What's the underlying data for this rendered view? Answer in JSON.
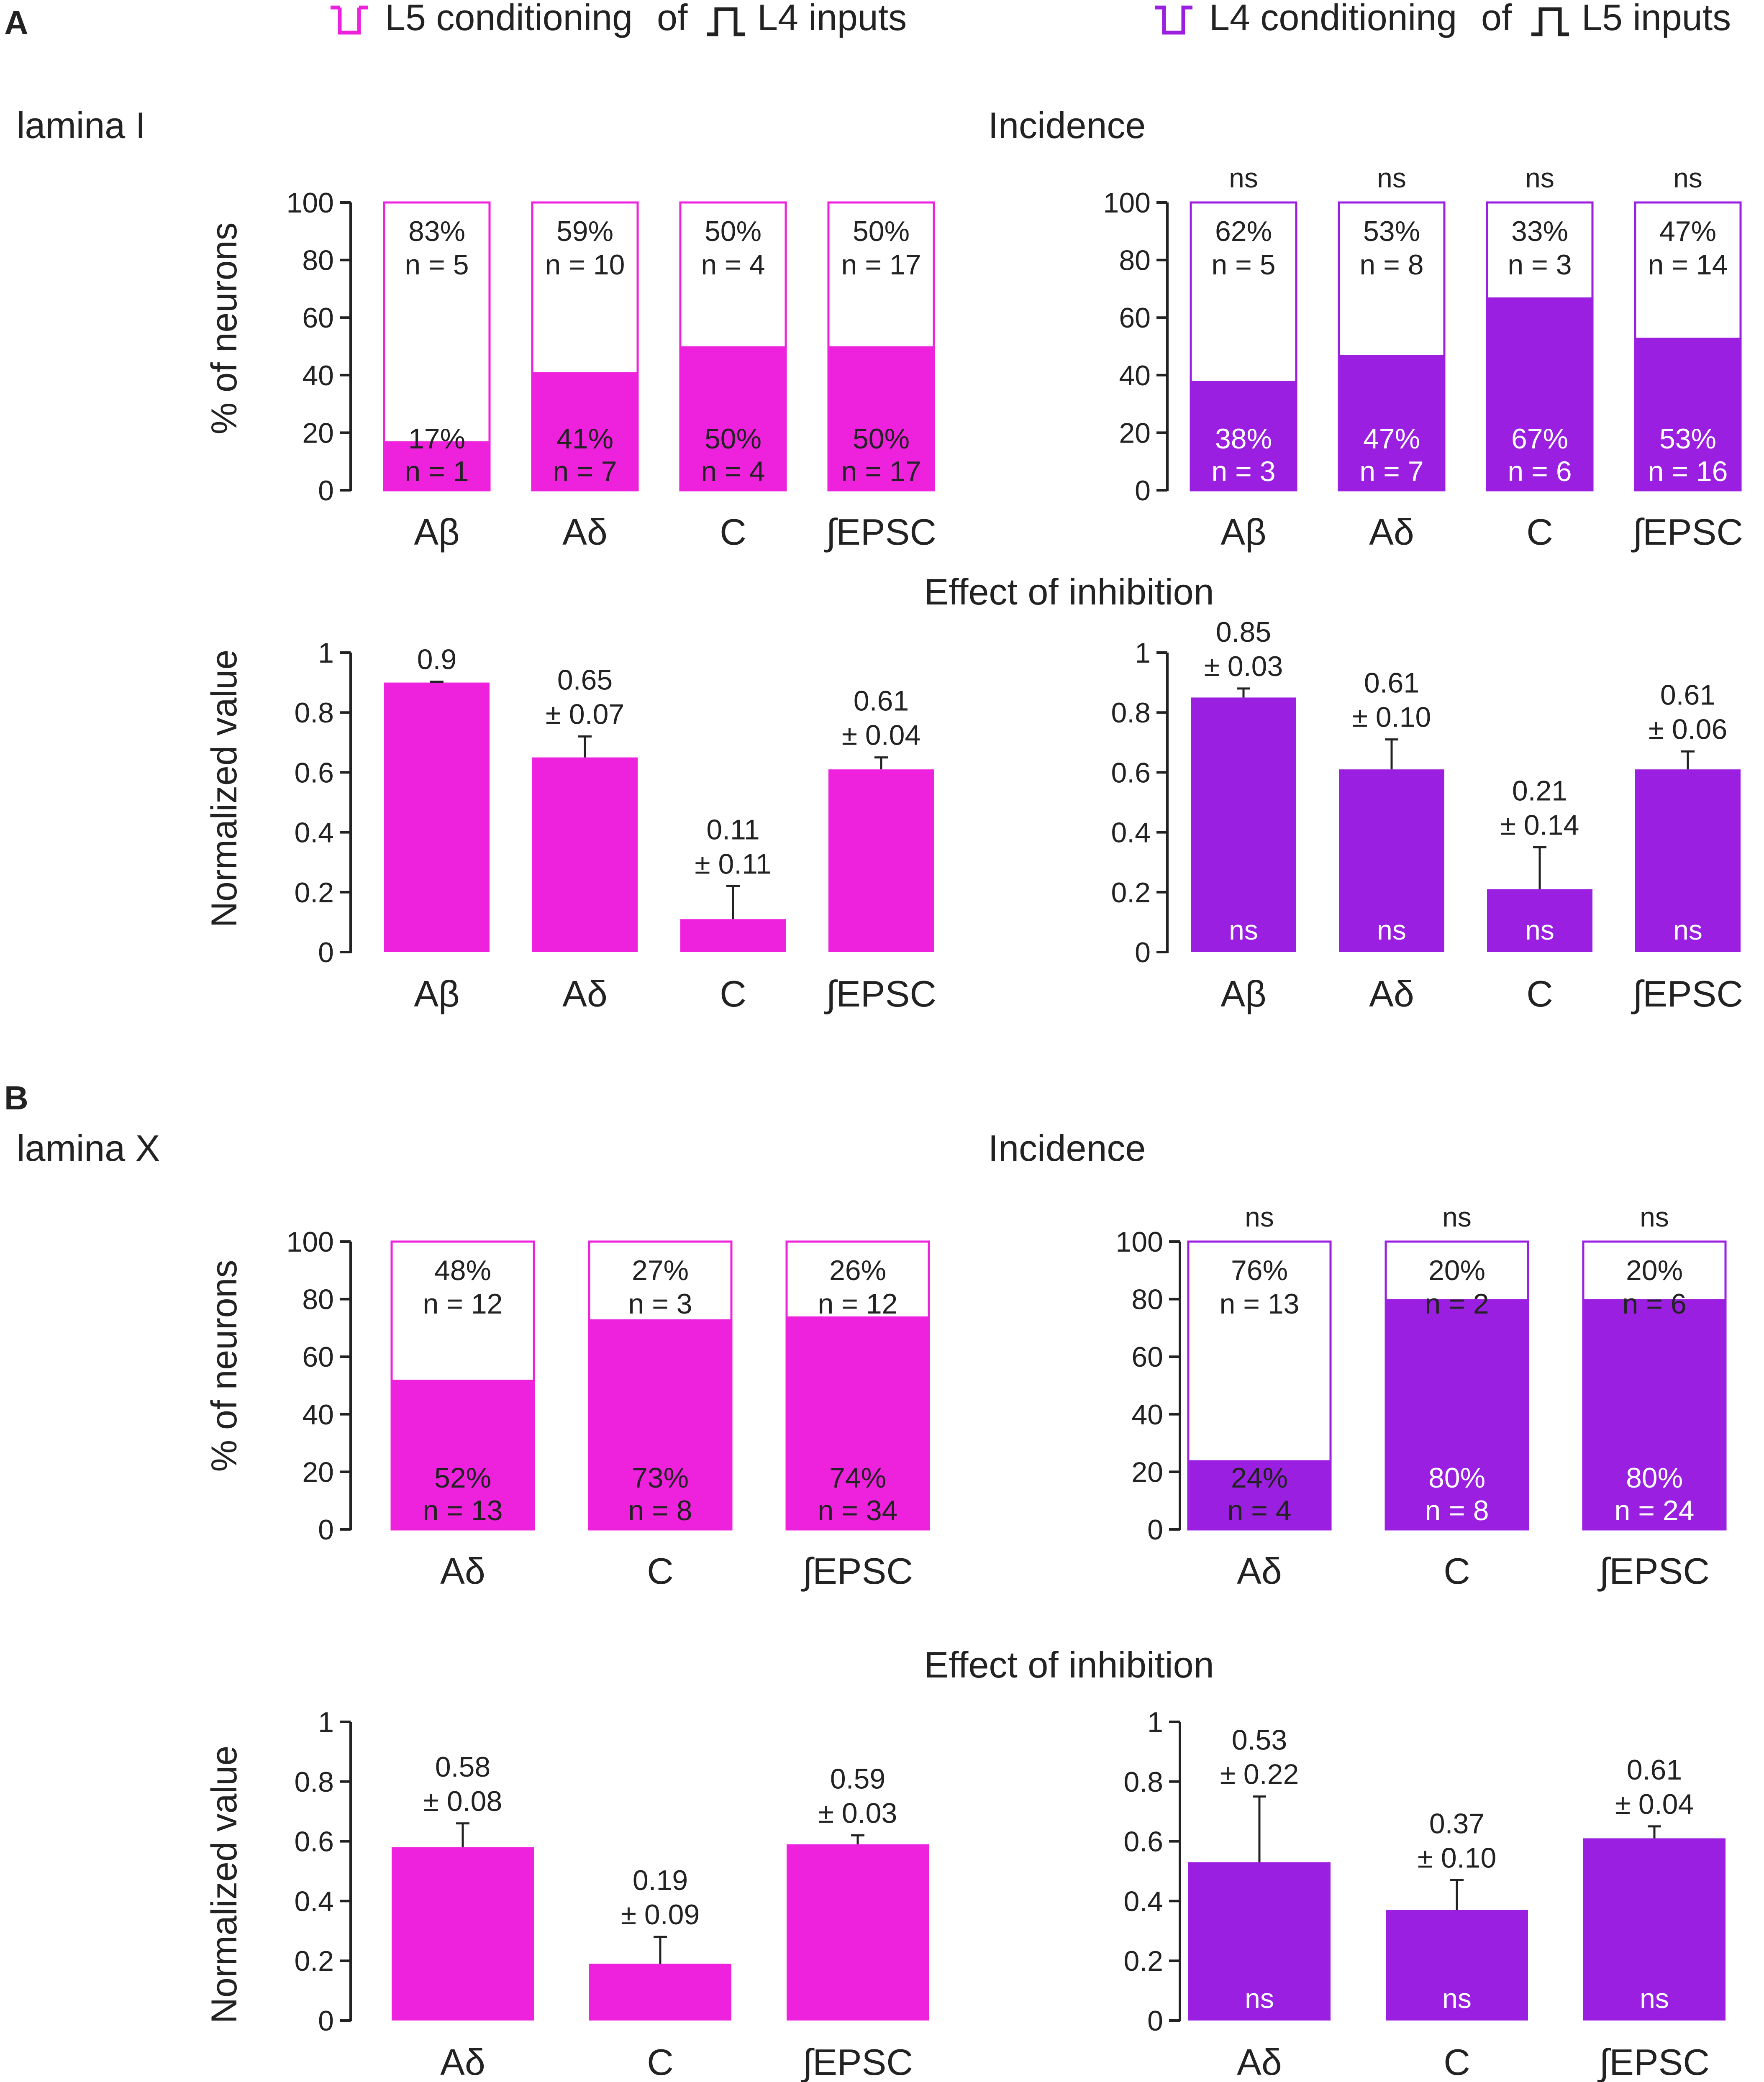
{
  "colors": {
    "magenta": "#ee22dd",
    "purple": "#9b1fe0",
    "axis": "#222222",
    "text_on_bar": "#ffffff",
    "text": "#222222"
  },
  "header": {
    "left": {
      "cond": "L5 conditioning",
      "of": "of",
      "inputs": "L4 inputs"
    },
    "right": {
      "cond": "L4 conditioning",
      "of": "of",
      "inputs": "L5 inputs"
    }
  },
  "panels": {
    "A": {
      "letter": "A",
      "lamina": "lamina I",
      "incidence": "Incidence",
      "effect": "Effect of inhibition"
    },
    "B": {
      "letter": "B",
      "lamina": "lamina X",
      "incidence": "Incidence",
      "effect": "Effect of inhibition"
    }
  },
  "axis_titles": {
    "incidence": "% of neurons",
    "effect": "Normalized value"
  },
  "chart_data": [
    {
      "id": "A-incidence-left",
      "type": "bar",
      "stacked": true,
      "color": "magenta",
      "ylim": [
        0,
        100
      ],
      "yticks": [
        "0",
        "20",
        "40",
        "60",
        "80",
        "100"
      ],
      "categories": [
        "Aβ",
        "Aδ",
        "C",
        "∫EPSC"
      ],
      "values": [
        17,
        41,
        50,
        50
      ],
      "top_labels": [
        [
          "83%",
          "n = 5"
        ],
        [
          "59%",
          "n = 10"
        ],
        [
          "50%",
          "n = 4"
        ],
        [
          "50%",
          "n = 17"
        ]
      ],
      "bottom_labels": [
        [
          "17%",
          "n = 1"
        ],
        [
          "41%",
          "n = 7"
        ],
        [
          "50%",
          "n = 4"
        ],
        [
          "50%",
          "n = 17"
        ]
      ],
      "sig": []
    },
    {
      "id": "A-incidence-right",
      "type": "bar",
      "stacked": true,
      "color": "purple",
      "ylim": [
        0,
        100
      ],
      "yticks": [
        "0",
        "20",
        "40",
        "60",
        "80",
        "100"
      ],
      "categories": [
        "Aβ",
        "Aδ",
        "C",
        "∫EPSC"
      ],
      "values": [
        38,
        47,
        67,
        53
      ],
      "top_labels": [
        [
          "62%",
          "n = 5"
        ],
        [
          "53%",
          "n = 8"
        ],
        [
          "33%",
          "n = 3"
        ],
        [
          "47%",
          "n = 14"
        ]
      ],
      "bottom_labels": [
        [
          "38%",
          "n = 3"
        ],
        [
          "47%",
          "n = 7"
        ],
        [
          "67%",
          "n = 6"
        ],
        [
          "53%",
          "n = 16"
        ]
      ],
      "sig": [
        "ns",
        "ns",
        "ns",
        "ns"
      ]
    },
    {
      "id": "A-effect-left",
      "type": "bar",
      "color": "magenta",
      "ylim": [
        0,
        1
      ],
      "yticks": [
        "0",
        "0.2",
        "0.4",
        "0.6",
        "0.8",
        "1"
      ],
      "categories": [
        "Aβ",
        "Aδ",
        "C",
        "∫EPSC"
      ],
      "values": [
        0.9,
        0.65,
        0.11,
        0.61
      ],
      "errors": [
        0.003,
        0.07,
        0.11,
        0.04
      ],
      "labels": [
        [
          "0.9"
        ],
        [
          "0.65",
          "± 0.07"
        ],
        [
          "0.11",
          "± 0.11"
        ],
        [
          "0.61",
          "± 0.04"
        ]
      ],
      "inside": []
    },
    {
      "id": "A-effect-right",
      "type": "bar",
      "color": "purple",
      "ylim": [
        0,
        1
      ],
      "yticks": [
        "0",
        "0.2",
        "0.4",
        "0.6",
        "0.8",
        "1"
      ],
      "categories": [
        "Aβ",
        "Aδ",
        "C",
        "∫EPSC"
      ],
      "values": [
        0.85,
        0.61,
        0.21,
        0.61
      ],
      "errors": [
        0.03,
        0.1,
        0.14,
        0.06
      ],
      "labels": [
        [
          "0.85",
          "± 0.03"
        ],
        [
          "0.61",
          "± 0.10"
        ],
        [
          "0.21",
          "± 0.14"
        ],
        [
          "0.61",
          "± 0.06"
        ]
      ],
      "inside": [
        "ns",
        "ns",
        "ns",
        "ns"
      ]
    },
    {
      "id": "B-incidence-left",
      "type": "bar",
      "stacked": true,
      "color": "magenta",
      "ylim": [
        0,
        100
      ],
      "yticks": [
        "0",
        "20",
        "40",
        "60",
        "80",
        "100"
      ],
      "categories": [
        "Aδ",
        "C",
        "∫EPSC"
      ],
      "values": [
        52,
        73,
        74
      ],
      "top_labels": [
        [
          "48%",
          "n = 12"
        ],
        [
          "27%",
          "n = 3"
        ],
        [
          "26%",
          "n = 12"
        ]
      ],
      "bottom_labels": [
        [
          "52%",
          "n = 13"
        ],
        [
          "73%",
          "n = 8"
        ],
        [
          "74%",
          "n = 34"
        ]
      ],
      "sig": []
    },
    {
      "id": "B-incidence-right",
      "type": "bar",
      "stacked": true,
      "color": "purple",
      "ylim": [
        0,
        100
      ],
      "yticks": [
        "0",
        "20",
        "40",
        "60",
        "80",
        "100"
      ],
      "categories": [
        "Aδ",
        "C",
        "∫EPSC"
      ],
      "values": [
        24,
        80,
        80
      ],
      "top_labels": [
        [
          "76%",
          "n = 13"
        ],
        [
          "20%",
          "n = 2"
        ],
        [
          "20%",
          "n = 6"
        ]
      ],
      "bottom_labels": [
        [
          "24%",
          "n = 4"
        ],
        [
          "80%",
          "n = 8"
        ],
        [
          "80%",
          "n = 24"
        ]
      ],
      "sig": [
        "ns",
        "ns",
        "ns"
      ]
    },
    {
      "id": "B-effect-left",
      "type": "bar",
      "color": "magenta",
      "ylim": [
        0,
        1
      ],
      "yticks": [
        "0",
        "0.2",
        "0.4",
        "0.6",
        "0.8",
        "1"
      ],
      "categories": [
        "Aδ",
        "C",
        "∫EPSC"
      ],
      "values": [
        0.58,
        0.19,
        0.59
      ],
      "errors": [
        0.08,
        0.09,
        0.03
      ],
      "labels": [
        [
          "0.58",
          "± 0.08"
        ],
        [
          "0.19",
          "± 0.09"
        ],
        [
          "0.59",
          "± 0.03"
        ]
      ],
      "inside": []
    },
    {
      "id": "B-effect-right",
      "type": "bar",
      "color": "purple",
      "ylim": [
        0,
        1
      ],
      "yticks": [
        "0",
        "0.2",
        "0.4",
        "0.6",
        "0.8",
        "1"
      ],
      "categories": [
        "Aδ",
        "C",
        "∫EPSC"
      ],
      "values": [
        0.53,
        0.37,
        0.61
      ],
      "errors": [
        0.22,
        0.1,
        0.04
      ],
      "labels": [
        [
          "0.53",
          "± 0.22"
        ],
        [
          "0.37",
          "± 0.10"
        ],
        [
          "0.61",
          "± 0.04"
        ]
      ],
      "inside": [
        "ns",
        "ns",
        "ns"
      ]
    }
  ]
}
